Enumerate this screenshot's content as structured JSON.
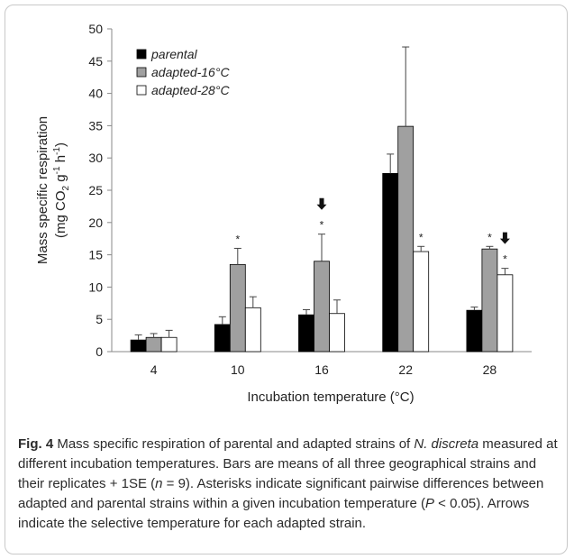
{
  "chart_data": {
    "type": "bar",
    "ylabel_line1": "Mass specific respiration",
    "ylabel_line2_parts": [
      "(mg CO",
      "2",
      " g",
      "-1",
      " h",
      "-1",
      ")"
    ],
    "xlabel": "Incubation temperature (°C)",
    "ylim": [
      0,
      50
    ],
    "yticks": [
      0,
      5,
      10,
      15,
      20,
      25,
      30,
      35,
      40,
      45,
      50
    ],
    "categories": [
      "4",
      "10",
      "16",
      "22",
      "28"
    ],
    "legend_position": "top-left",
    "series": [
      {
        "name": "parental",
        "color": "#000000",
        "values": [
          1.8,
          4.2,
          5.7,
          27.6,
          6.4
        ],
        "errors": [
          0.8,
          1.2,
          0.8,
          3.0,
          0.5
        ]
      },
      {
        "name": "adapted-16°C",
        "color": "#a0a0a0",
        "values": [
          2.2,
          13.5,
          14.0,
          34.9,
          15.9
        ],
        "errors": [
          0.6,
          2.5,
          4.2,
          12.3,
          0.4
        ]
      },
      {
        "name": "adapted-28°C",
        "color": "#ffffff",
        "values": [
          2.2,
          6.8,
          5.9,
          15.5,
          11.9
        ],
        "errors": [
          1.1,
          1.7,
          2.1,
          0.8,
          1.0
        ]
      }
    ],
    "annotations": {
      "asterisk": "*",
      "asterisks": [
        {
          "category": "10",
          "series": "adapted-16°C"
        },
        {
          "category": "16",
          "series": "adapted-16°C"
        },
        {
          "category": "22",
          "series": "adapted-28°C"
        },
        {
          "category": "28",
          "series": "adapted-16°C"
        },
        {
          "category": "28",
          "series": "adapted-28°C"
        }
      ],
      "arrows": [
        {
          "category": "16",
          "series": "adapted-16°C"
        },
        {
          "category": "28",
          "series": "adapted-28°C"
        }
      ]
    }
  },
  "caption": {
    "fig_label": "Fig. 4",
    "t1": " Mass specific respiration of parental and adapted strains of ",
    "i1": "N. discreta",
    "t2": " measured at different incubation temperatures. Bars are means of all three geographical strains and their replicates + 1SE (",
    "i2": "n",
    "t3": " = 9). Asterisks indicate significant pairwise differences between adapted and parental strains within a given incubation temperature (",
    "i3": "P",
    "t4": " < 0.05). Arrows indicate the selective temperature for each adapted strain."
  }
}
